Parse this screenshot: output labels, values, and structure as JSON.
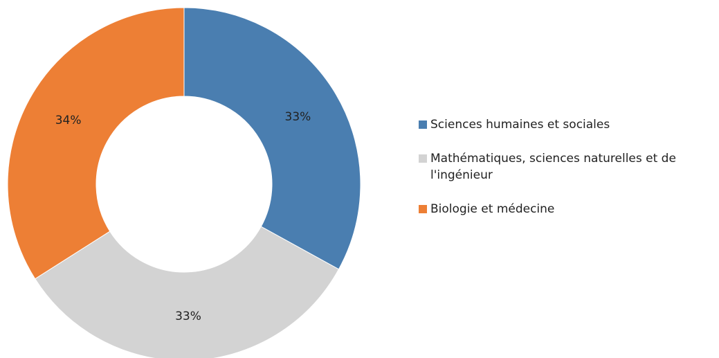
{
  "chart_data": {
    "type": "donut",
    "categories": [
      "Sciences humaines et sociales",
      "Mathématiques, sciences naturelles et de l'ingénieur",
      "Biologie et médecine"
    ],
    "values": [
      33,
      33,
      34
    ],
    "value_labels": [
      "33%",
      "33%",
      "34%"
    ],
    "colors": [
      "#4a7eb0",
      "#d3d3d3",
      "#ed7f35"
    ],
    "legend": "right"
  }
}
